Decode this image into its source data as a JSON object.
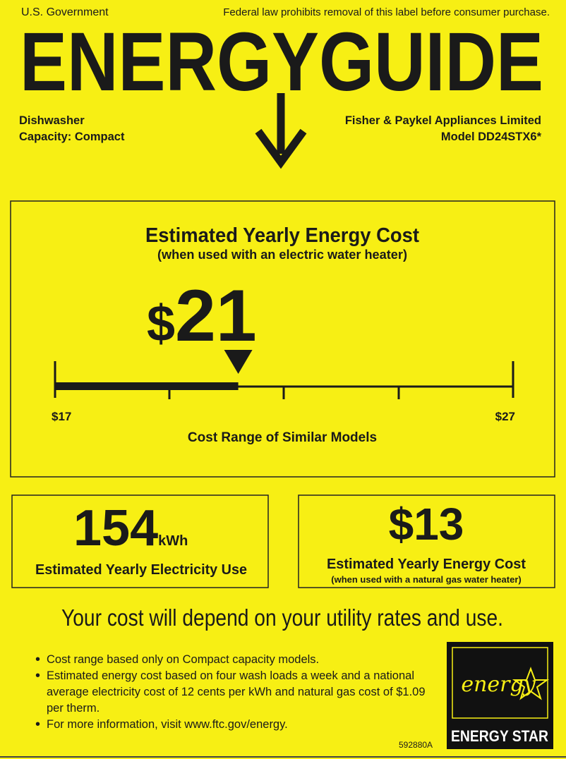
{
  "header": {
    "left": "U.S. Government",
    "right": "Federal law prohibits removal of this label before consumer purchase.",
    "title": "ENERGYGUIDE"
  },
  "product": {
    "type": "Dishwasher",
    "capacity": "Capacity: Compact",
    "maker": "Fisher & Paykel Appliances Limited",
    "model": "Model DD24STX6*"
  },
  "main_cost": {
    "title": "Estimated Yearly Energy Cost",
    "subtitle": "(when used with an electric water heater)",
    "currency": "$",
    "amount": 21,
    "range": {
      "low": {
        "currency": "$",
        "amount": 17
      },
      "high": {
        "currency": "$",
        "amount": 27
      },
      "caption": "Cost Range of Similar Models"
    }
  },
  "electricity": {
    "amount": 154,
    "unit": "kWh",
    "caption": "Estimated Yearly Electricity Use"
  },
  "gas_cost": {
    "currency": "$",
    "amount": 13,
    "title": "Estimated Yearly Energy Cost",
    "subtitle": "(when used with a natural gas water heater)"
  },
  "notice": "Your cost will depend on your utility rates and use.",
  "notes": [
    "Cost range based only on Compact capacity models.",
    "Estimated energy cost based on four wash loads a week and a national average electricity cost of 12 cents per kWh and natural gas cost of $1.09 per therm.",
    "For more information, visit www.ftc.gov/energy."
  ],
  "label_id": "592880A",
  "energy_star": {
    "logo_text": "energy",
    "label": "ENERGY STAR"
  }
}
